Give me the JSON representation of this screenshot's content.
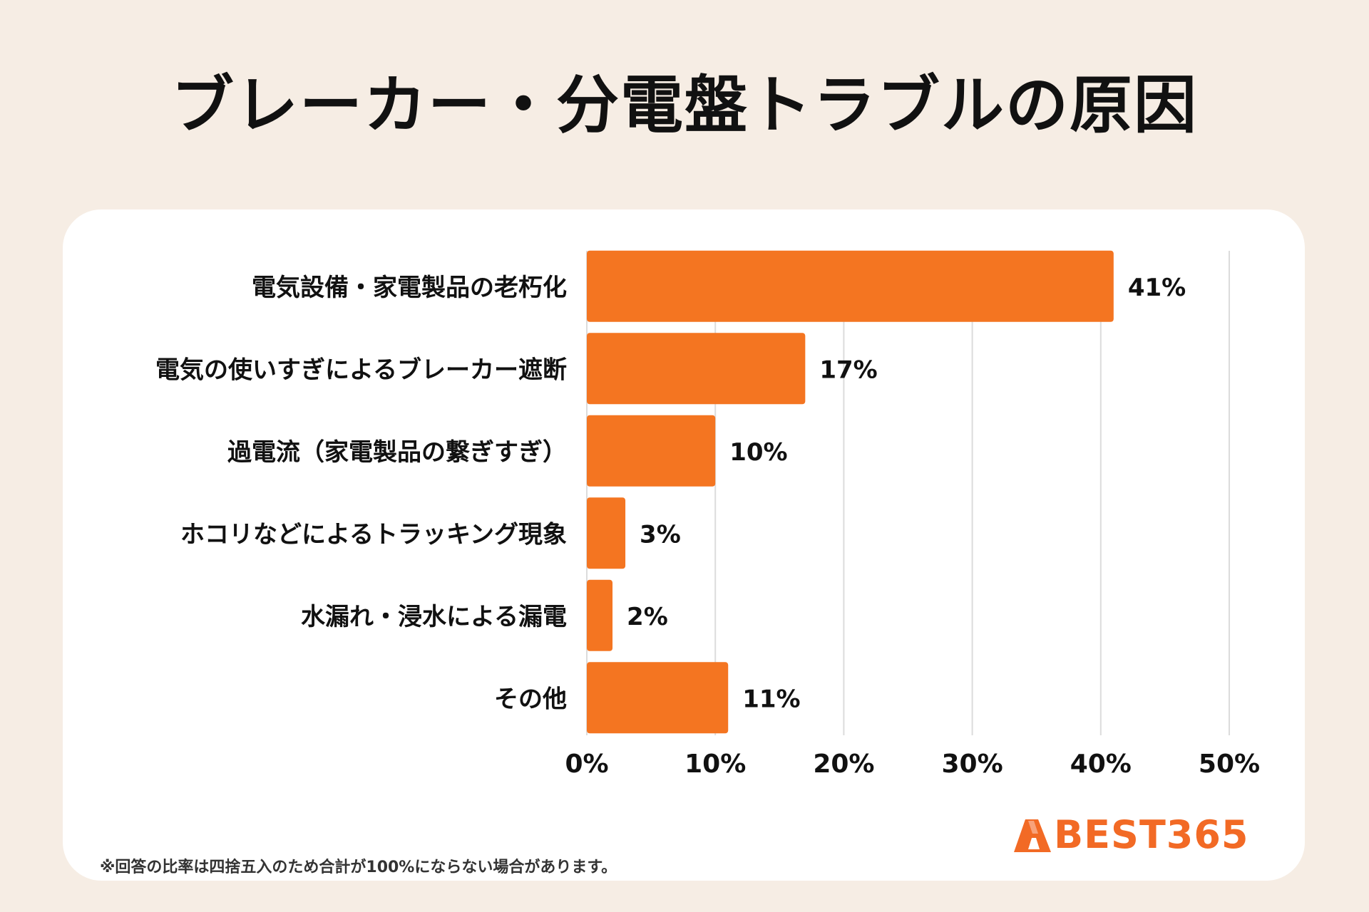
{
  "title": "ブレーカー・分電盤トラブルの原因",
  "colors": {
    "background": "#f6ede4",
    "card": "#ffffff",
    "bar": "#f47521",
    "grid": "#dcdcdc",
    "text": "#111111",
    "brand": "#f26a25"
  },
  "chart_data": {
    "type": "bar",
    "orientation": "horizontal",
    "title": "ブレーカー・分電盤トラブルの原因",
    "categories": [
      "電気設備・家電製品の老朽化",
      "電気の使いすぎによるブレーカー遮断",
      "過電流（家電製品の繋ぎすぎ）",
      "ホコリなどによるトラッキング現象",
      "水漏れ・浸水による漏電",
      "その他"
    ],
    "values": [
      41,
      17,
      10,
      3,
      2,
      11
    ],
    "data_labels": [
      "41%",
      "17%",
      "10%",
      "3%",
      "2%",
      "11%"
    ],
    "xlim": [
      0,
      50
    ],
    "x_ticks": [
      0,
      10,
      20,
      30,
      40,
      50
    ],
    "x_tick_labels": [
      "0%",
      "10%",
      "20%",
      "30%",
      "40%",
      "50%"
    ],
    "unit": "%",
    "grid": true,
    "xlabel": "",
    "ylabel": ""
  },
  "logo": {
    "text": "BEST365",
    "icon": "brand-a-icon"
  },
  "footnote": "※回答の比率は四捨五入のため合計が100%にならない場合があります。"
}
